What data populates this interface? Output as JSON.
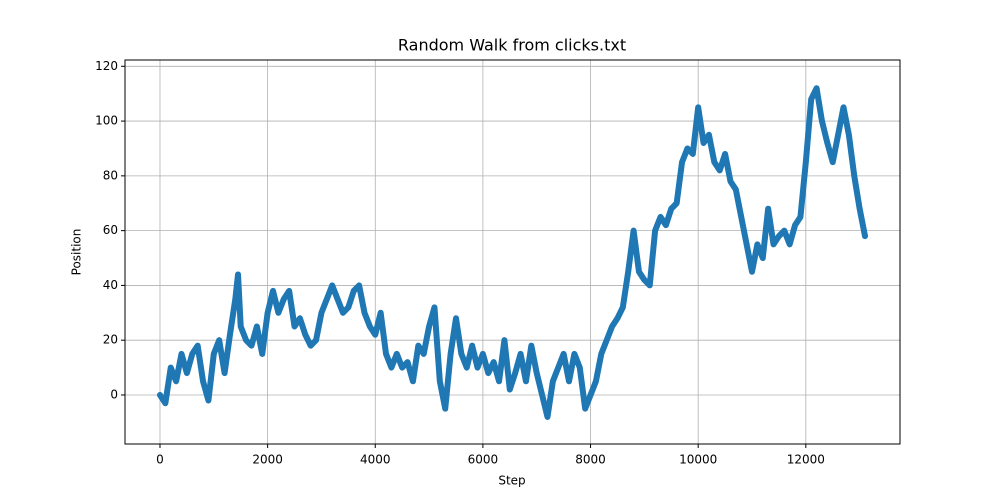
{
  "chart_data": {
    "type": "line",
    "title": "Random Walk from clicks.txt",
    "x_label": "Step",
    "y_label": "Position",
    "x": [
      0,
      100,
      200,
      300,
      400,
      500,
      600,
      700,
      800,
      900,
      1000,
      1100,
      1200,
      1300,
      1400,
      1450,
      1500,
      1600,
      1700,
      1800,
      1900,
      2000,
      2100,
      2200,
      2300,
      2400,
      2500,
      2600,
      2700,
      2800,
      2900,
      3000,
      3100,
      3200,
      3300,
      3400,
      3500,
      3600,
      3700,
      3800,
      3900,
      4000,
      4100,
      4200,
      4300,
      4400,
      4500,
      4600,
      4700,
      4800,
      4900,
      5000,
      5100,
      5200,
      5300,
      5400,
      5500,
      5600,
      5700,
      5800,
      5900,
      6000,
      6100,
      6200,
      6300,
      6400,
      6500,
      6600,
      6700,
      6800,
      6900,
      7000,
      7100,
      7200,
      7300,
      7400,
      7500,
      7600,
      7700,
      7800,
      7900,
      8000,
      8100,
      8200,
      8300,
      8400,
      8500,
      8600,
      8700,
      8800,
      8900,
      9000,
      9100,
      9200,
      9300,
      9400,
      9500,
      9600,
      9700,
      9800,
      9900,
      10000,
      10100,
      10200,
      10300,
      10400,
      10500,
      10600,
      10700,
      10800,
      10900,
      11000,
      11100,
      11200,
      11300,
      11400,
      11500,
      11600,
      11700,
      11800,
      11900,
      12000,
      12100,
      12200,
      12300,
      12400,
      12500,
      12600,
      12700,
      12800,
      12900,
      13000,
      13100
    ],
    "values": [
      0,
      -3,
      10,
      5,
      15,
      8,
      15,
      18,
      5,
      -2,
      15,
      20,
      8,
      22,
      35,
      44,
      25,
      20,
      18,
      25,
      15,
      30,
      38,
      30,
      35,
      38,
      25,
      28,
      22,
      18,
      20,
      30,
      35,
      40,
      35,
      30,
      32,
      38,
      40,
      30,
      25,
      22,
      30,
      15,
      10,
      15,
      10,
      12,
      5,
      18,
      15,
      25,
      32,
      5,
      -5,
      15,
      28,
      15,
      10,
      18,
      10,
      15,
      8,
      12,
      5,
      20,
      2,
      8,
      15,
      5,
      18,
      8,
      0,
      -8,
      5,
      10,
      15,
      5,
      15,
      10,
      -5,
      0,
      5,
      15,
      20,
      25,
      28,
      32,
      45,
      60,
      45,
      42,
      40,
      60,
      65,
      62,
      68,
      70,
      85,
      90,
      88,
      105,
      92,
      95,
      85,
      82,
      88,
      78,
      75,
      65,
      55,
      45,
      55,
      50,
      68,
      55,
      58,
      60,
      55,
      62,
      65,
      85,
      108,
      112,
      100,
      92,
      85,
      95,
      105,
      95,
      80,
      68,
      58
    ],
    "color": "#1f77b4",
    "xlim": [
      -650,
      13750
    ],
    "xticks": [
      0,
      2000,
      4000,
      6000,
      8000,
      10000,
      12000
    ],
    "ylim": [
      -17.9,
      122.3
    ],
    "yticks": [
      0,
      20,
      40,
      60,
      80,
      100,
      120
    ],
    "grid": true
  }
}
